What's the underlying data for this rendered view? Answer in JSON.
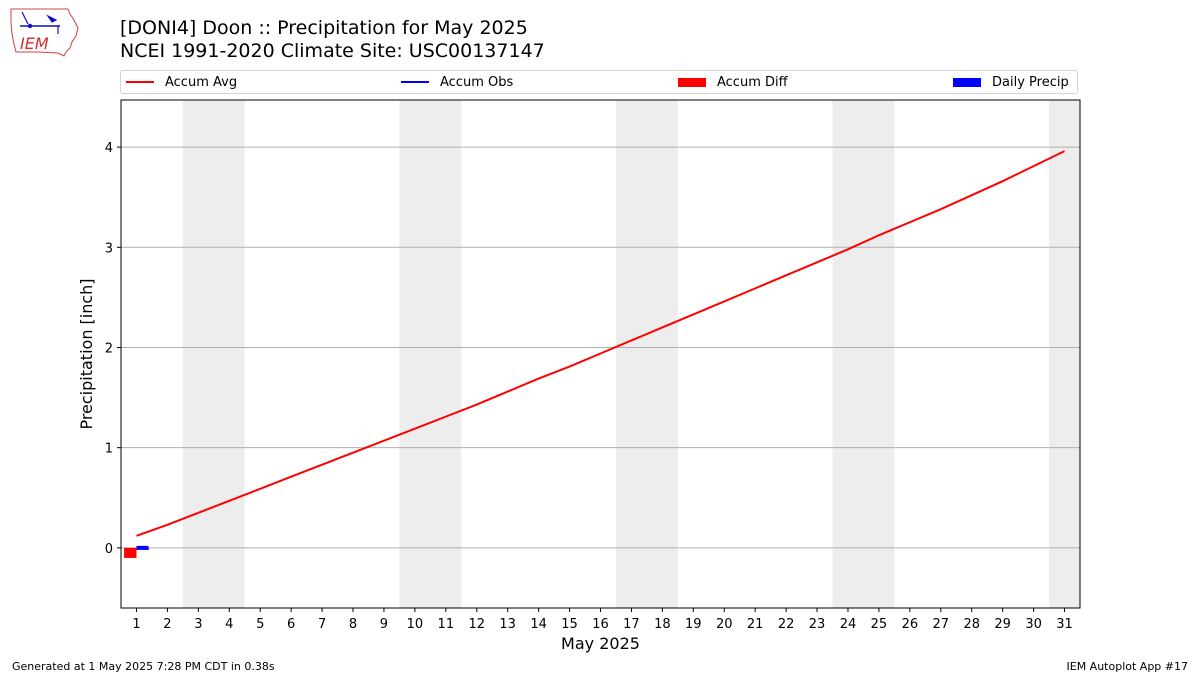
{
  "header": {
    "logo_text": "IEM",
    "title_line1": "[DONI4] Doon :: Precipitation for May 2025",
    "title_line2": "NCEI 1991-2020 Climate Site: USC00137147"
  },
  "legend": {
    "items": [
      {
        "label": "Accum Avg",
        "color": "#ff0000",
        "kind": "line"
      },
      {
        "label": "Accum Obs",
        "color": "#0000ff",
        "kind": "line"
      },
      {
        "label": "Accum Diff",
        "color": "#ff0000",
        "kind": "patch"
      },
      {
        "label": "Daily Precip",
        "color": "#0000ff",
        "kind": "patch"
      }
    ]
  },
  "footer": {
    "left": "Generated at 1 May 2025 7:28 PM CDT in 0.38s",
    "right": "IEM Autoplot App #17"
  },
  "chart_data": {
    "type": "line",
    "xlabel": "May 2025",
    "ylabel": "Precipitation [inch]",
    "xlim": [
      0.5,
      31.5
    ],
    "ylim": [
      -0.6,
      4.47
    ],
    "x_ticks": [
      1,
      2,
      3,
      4,
      5,
      6,
      7,
      8,
      9,
      10,
      11,
      12,
      13,
      14,
      15,
      16,
      17,
      18,
      19,
      20,
      21,
      22,
      23,
      24,
      25,
      26,
      27,
      28,
      29,
      30,
      31
    ],
    "y_ticks": [
      0,
      1,
      2,
      3,
      4
    ],
    "grid": "horizontal",
    "weekend_shading": [
      [
        3,
        4
      ],
      [
        10,
        11
      ],
      [
        17,
        18
      ],
      [
        24,
        25
      ],
      [
        31,
        31
      ]
    ],
    "weekend_color": "#ededed",
    "series": [
      {
        "name": "Accum Avg",
        "kind": "line",
        "color": "#ff0000",
        "x": [
          1,
          2,
          3,
          4,
          5,
          6,
          7,
          8,
          9,
          10,
          11,
          12,
          13,
          14,
          15,
          16,
          17,
          18,
          19,
          20,
          21,
          22,
          23,
          24,
          25,
          26,
          27,
          28,
          29,
          30,
          31
        ],
        "values": [
          0.12,
          0.23,
          0.35,
          0.47,
          0.59,
          0.71,
          0.83,
          0.95,
          1.07,
          1.19,
          1.31,
          1.43,
          1.56,
          1.69,
          1.81,
          1.94,
          2.07,
          2.2,
          2.33,
          2.46,
          2.59,
          2.72,
          2.85,
          2.98,
          3.12,
          3.25,
          3.38,
          3.52,
          3.66,
          3.81,
          3.96
        ]
      },
      {
        "name": "Accum Obs",
        "kind": "line",
        "color": "#0000ff",
        "x": [
          1
        ],
        "values": [
          0.0
        ]
      },
      {
        "name": "Accum Diff",
        "kind": "bar",
        "color": "#ff0000",
        "x": [
          1
        ],
        "values": [
          -0.1
        ]
      },
      {
        "name": "Daily Precip",
        "kind": "bar",
        "color": "#0000ff",
        "x": [
          1
        ],
        "values": [
          0.0
        ]
      }
    ]
  }
}
